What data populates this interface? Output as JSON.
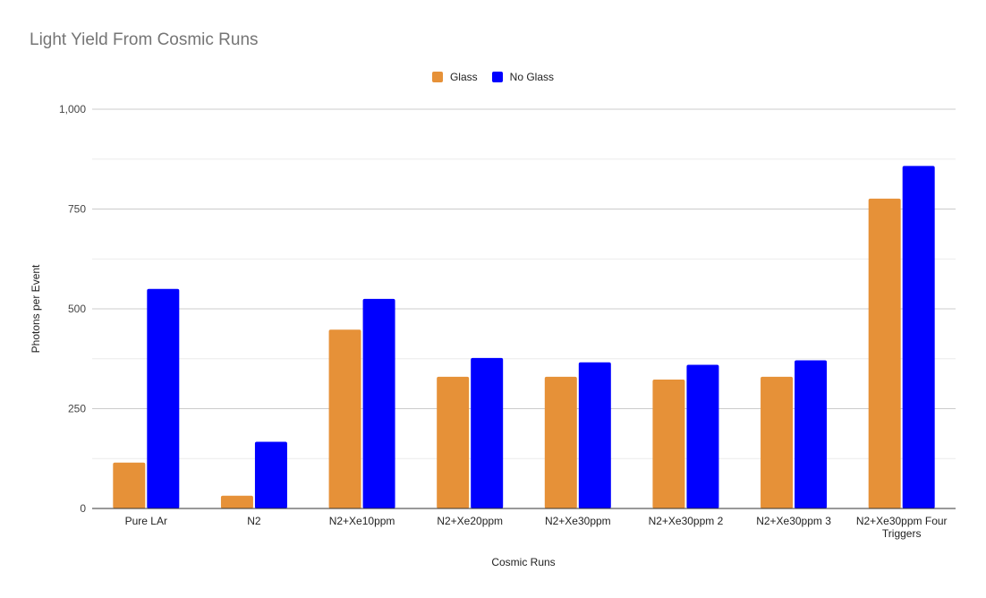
{
  "chart_data": {
    "type": "bar",
    "title": "Light Yield From Cosmic Runs",
    "xlabel": "Cosmic Runs",
    "ylabel": "Photons per Event",
    "ylim": [
      0,
      1000
    ],
    "yticks": [
      "0",
      "250",
      "500",
      "750",
      "1,000"
    ],
    "ytick_values": [
      0,
      250,
      500,
      750,
      1000
    ],
    "grid": true,
    "legend_position": "top",
    "categories": [
      [
        "Pure LAr"
      ],
      [
        "N2"
      ],
      [
        "N2+Xe10ppm"
      ],
      [
        "N2+Xe20ppm"
      ],
      [
        "N2+Xe30ppm"
      ],
      [
        "N2+Xe30ppm 2"
      ],
      [
        "N2+Xe30ppm 3"
      ],
      [
        "N2+Xe30ppm Four",
        "Triggers"
      ]
    ],
    "series": [
      {
        "name": "Glass",
        "color": "#e69138",
        "values": [
          115,
          32,
          448,
          330,
          330,
          323,
          330,
          776
        ]
      },
      {
        "name": "No Glass",
        "color": "#0000ff",
        "values": [
          550,
          167,
          525,
          377,
          366,
          360,
          371,
          858
        ]
      }
    ]
  }
}
